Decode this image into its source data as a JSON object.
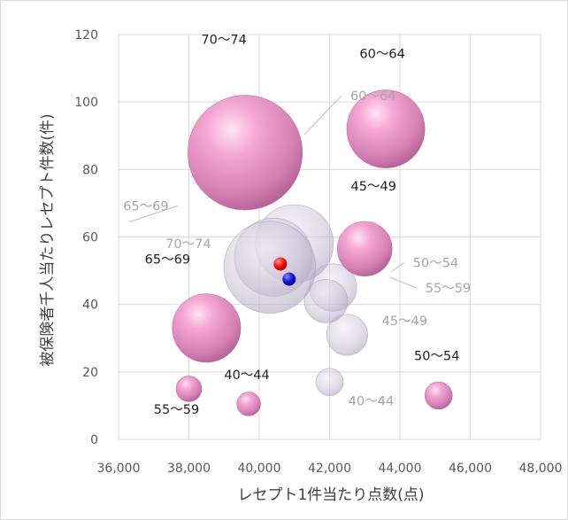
{
  "chart_data": {
    "type": "bubble",
    "xlabel": "レセプト1件当たり点数(点)",
    "ylabel": "被保険者千人当たりレセプト件数(件)",
    "xlim": [
      36000,
      48000
    ],
    "ylim": [
      0,
      120
    ],
    "xticks": [
      "36,000",
      "38,000",
      "40,000",
      "42,000",
      "44,000",
      "46,000",
      "48,000"
    ],
    "yticks": [
      "0",
      "20",
      "40",
      "60",
      "80",
      "100",
      "120"
    ],
    "grid": true,
    "series": [
      {
        "style": "pink",
        "points": [
          {
            "label": "40〜44",
            "x": 39700,
            "y": 10.5,
            "size": 0.6
          },
          {
            "label": "45〜49",
            "x": 43000,
            "y": 56.5,
            "size": 3.2
          },
          {
            "label": "50〜54",
            "x": 45100,
            "y": 13,
            "size": 0.8
          },
          {
            "label": "55〜59",
            "x": 38000,
            "y": 15,
            "size": 0.7
          },
          {
            "label": "60〜64",
            "x": 43600,
            "y": 92,
            "size": 6.5
          },
          {
            "label": "65〜69",
            "x": 38500,
            "y": 33,
            "size": 5.0
          },
          {
            "label": "70〜74",
            "x": 39600,
            "y": 85,
            "size": 14.0
          }
        ]
      },
      {
        "style": "grey",
        "points": [
          {
            "label": "40〜44",
            "x": 42000,
            "y": 17,
            "size": 0.8
          },
          {
            "label": "45〜49",
            "x": 42500,
            "y": 31,
            "size": 1.8
          },
          {
            "label": "50〜54",
            "x": 42100,
            "y": 45,
            "size": 2.4
          },
          {
            "label": "55〜59",
            "x": 41900,
            "y": 41,
            "size": 2.0
          },
          {
            "label": "60〜64",
            "x": 41000,
            "y": 58,
            "size": 6.5
          },
          {
            "label": "65〜69",
            "x": 40400,
            "y": 54,
            "size": 6.5
          },
          {
            "label": "70〜74",
            "x": 40300,
            "y": 51,
            "size": 9.0
          }
        ]
      },
      {
        "style": "marker",
        "points": [
          {
            "x": 40600,
            "y": 52,
            "color": "#ff0000"
          },
          {
            "x": 40850,
            "y": 47.5,
            "color": "#1010d0"
          }
        ]
      }
    ]
  }
}
